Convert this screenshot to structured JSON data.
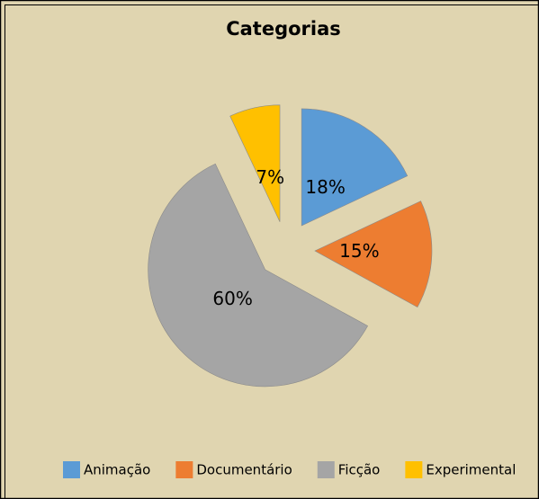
{
  "chart_data": {
    "type": "pie",
    "title": "Categorias",
    "categories": [
      "Animação",
      "Documentário",
      "Ficção",
      "Experimental"
    ],
    "values": [
      18,
      15,
      60,
      7
    ],
    "value_labels": [
      "18%",
      "15%",
      "60%",
      "7%"
    ],
    "colors": [
      "#5b9bd5",
      "#ed7d31",
      "#a5a5a5",
      "#ffc000"
    ],
    "legend": "bottom"
  }
}
